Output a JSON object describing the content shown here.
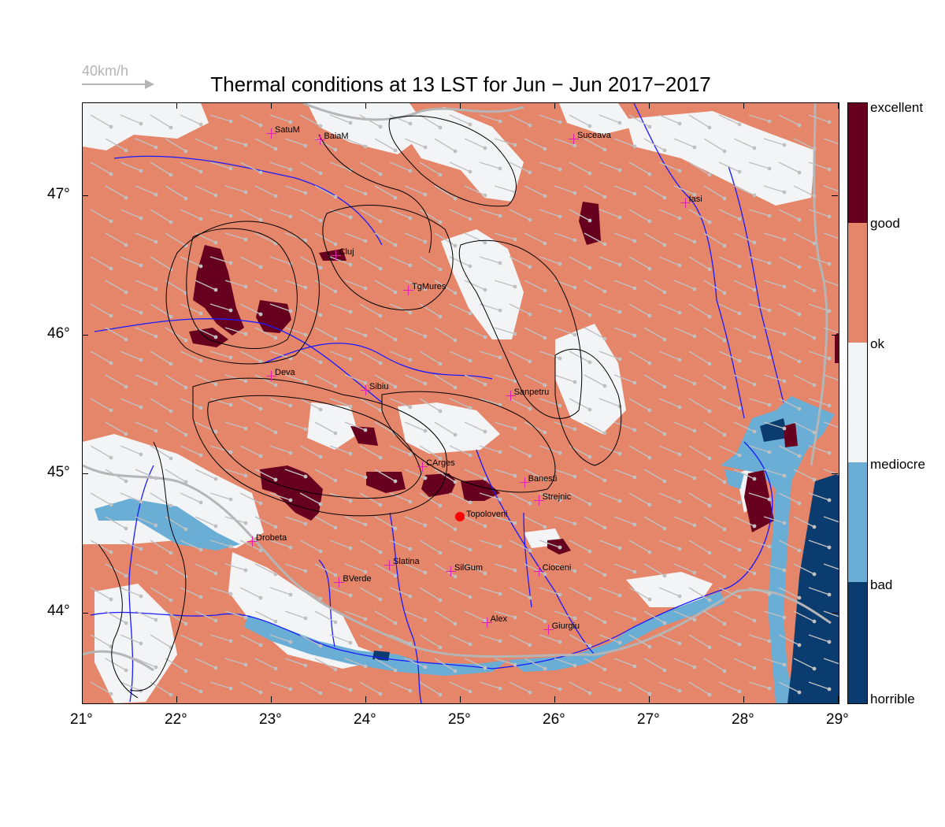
{
  "title": "Thermal conditions at 13 LST for Jun − Jun  2017−2017",
  "scale": {
    "label": "40km/h"
  },
  "axes": {
    "lon": {
      "ticks": [
        "21°",
        "22°",
        "23°",
        "24°",
        "25°",
        "26°",
        "27°",
        "28°",
        "29°"
      ],
      "min": 21,
      "max": 29
    },
    "lat": {
      "ticks": [
        "47°",
        "46°",
        "45°",
        "44°"
      ],
      "min": 43.35,
      "max": 47.68
    }
  },
  "legend": {
    "labels": [
      "excellent",
      "good",
      "ok",
      "mediocre",
      "bad",
      "horrible"
    ],
    "colors": {
      "excellent": "#67001f",
      "good": "#e5866a",
      "ok": "#f3f4f6",
      "mediocre": "#6aaed6",
      "bad": "#0b3c6f"
    }
  },
  "cities": [
    {
      "name": "SatuM",
      "lon": 23.0,
      "lat": 47.45
    },
    {
      "name": "BaiaM",
      "lon": 23.52,
      "lat": 47.4
    },
    {
      "name": "Suceava",
      "lon": 26.2,
      "lat": 47.41
    },
    {
      "name": "Iasi",
      "lon": 27.38,
      "lat": 46.95
    },
    {
      "name": "Cluj",
      "lon": 23.68,
      "lat": 46.57
    },
    {
      "name": "TgMures",
      "lon": 24.45,
      "lat": 46.32
    },
    {
      "name": "Deva",
      "lon": 23.0,
      "lat": 45.7
    },
    {
      "name": "Sibiu",
      "lon": 24.0,
      "lat": 45.6
    },
    {
      "name": "Sanpetru",
      "lon": 25.53,
      "lat": 45.56
    },
    {
      "name": "CArges",
      "lon": 24.6,
      "lat": 45.05
    },
    {
      "name": "Banesti",
      "lon": 25.68,
      "lat": 44.94
    },
    {
      "name": "Strejnic",
      "lon": 25.83,
      "lat": 44.81
    },
    {
      "name": "Drobeta",
      "lon": 22.8,
      "lat": 44.51
    },
    {
      "name": "Slatina",
      "lon": 24.25,
      "lat": 44.34
    },
    {
      "name": "SilGum",
      "lon": 24.9,
      "lat": 44.3
    },
    {
      "name": "Cioceni",
      "lon": 25.83,
      "lat": 44.3
    },
    {
      "name": "BVerde",
      "lon": 23.72,
      "lat": 44.22
    },
    {
      "name": "Alex",
      "lon": 25.28,
      "lat": 43.93
    },
    {
      "name": "Giurgiu",
      "lon": 25.93,
      "lat": 43.88
    }
  ],
  "marker": {
    "name": "Topoloveni",
    "lon": 25.0,
    "lat": 44.69
  }
}
